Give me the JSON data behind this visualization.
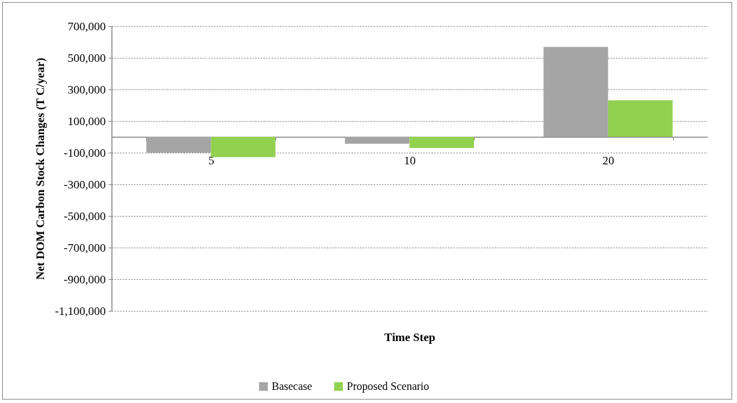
{
  "chart_data": {
    "type": "bar",
    "xlabel": "Time Step",
    "ylabel": "Net DOM Carbon Stock Changes (T C/year)",
    "categories": [
      "5",
      "10",
      "20"
    ],
    "series": [
      {
        "name": "Basecase",
        "color": "#a5a5a5",
        "values": [
          -100000,
          -44000,
          568000
        ]
      },
      {
        "name": "Proposed Scenario",
        "color": "#92d050",
        "values": [
          -128000,
          -71000,
          231000
        ]
      }
    ],
    "ylim": [
      -1100000,
      700000
    ],
    "yticks": [
      {
        "value": -1100000,
        "label": "-1,100,000"
      },
      {
        "value": -900000,
        "label": "-900,000"
      },
      {
        "value": -700000,
        "label": "-700,000"
      },
      {
        "value": -500000,
        "label": "-500,000"
      },
      {
        "value": -300000,
        "label": "-300,000"
      },
      {
        "value": -100000,
        "label": "-100,000"
      },
      {
        "value": 100000,
        "label": "100,000"
      },
      {
        "value": 300000,
        "label": "300,000"
      },
      {
        "value": 500000,
        "label": "500,000"
      },
      {
        "value": 700000,
        "label": "700,000"
      }
    ],
    "grid": "y",
    "legend": "bottom"
  }
}
